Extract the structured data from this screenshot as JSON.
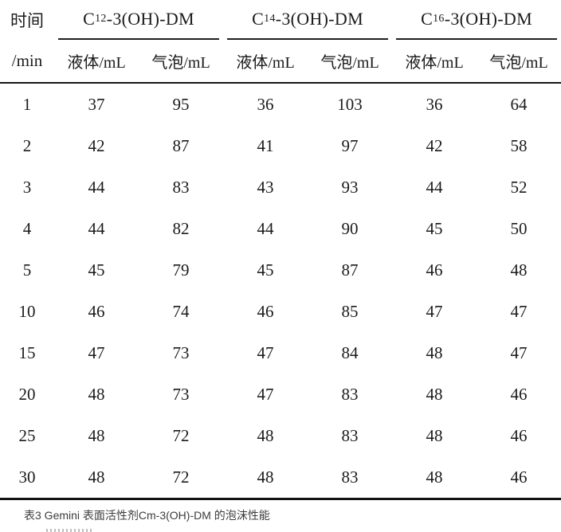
{
  "table": {
    "time_header": {
      "line1": "时间",
      "line2": "/min"
    },
    "groups": [
      {
        "prefix": "C",
        "subscript": "12",
        "suffix": "-3(OH)-DM"
      },
      {
        "prefix": "C",
        "subscript": "14",
        "suffix": "-3(OH)-DM"
      },
      {
        "prefix": "C",
        "subscript": "16",
        "suffix": "-3(OH)-DM"
      }
    ],
    "subheaders": [
      "液体/mL",
      "气泡/mL"
    ],
    "rows": [
      [
        "1",
        "37",
        "95",
        "36",
        "103",
        "36",
        "64"
      ],
      [
        "2",
        "42",
        "87",
        "41",
        "97",
        "42",
        "58"
      ],
      [
        "3",
        "44",
        "83",
        "43",
        "93",
        "44",
        "52"
      ],
      [
        "4",
        "44",
        "82",
        "44",
        "90",
        "45",
        "50"
      ],
      [
        "5",
        "45",
        "79",
        "45",
        "87",
        "46",
        "48"
      ],
      [
        "10",
        "46",
        "74",
        "46",
        "85",
        "47",
        "47"
      ],
      [
        "15",
        "47",
        "73",
        "47",
        "84",
        "48",
        "47"
      ],
      [
        "20",
        "48",
        "73",
        "47",
        "83",
        "48",
        "46"
      ],
      [
        "25",
        "48",
        "72",
        "48",
        "83",
        "48",
        "46"
      ],
      [
        "30",
        "48",
        "72",
        "48",
        "83",
        "48",
        "46"
      ]
    ]
  },
  "caption": "表3 Gemini 表面活性剂Cm-3(OH)-DM 的泡沫性能",
  "colors": {
    "background": "#ffffff",
    "table_text": "#1b1b1b",
    "rule": "#161616",
    "caption_text": "#3c3c3c"
  }
}
